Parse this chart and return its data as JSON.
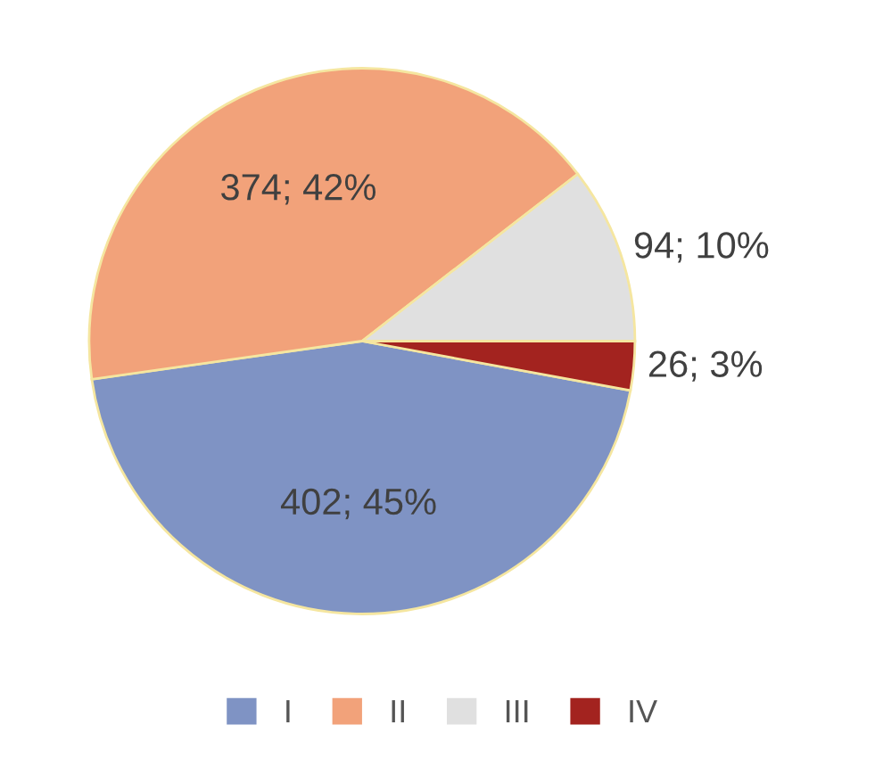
{
  "chart_data": {
    "type": "pie",
    "categories": [
      "I",
      "II",
      "III",
      "IV"
    ],
    "values": [
      402,
      374,
      94,
      26
    ],
    "value_labels": [
      "402; 45%",
      "374; 42%",
      "94; 10%",
      "26; 3%"
    ],
    "colors": [
      "#7f93c4",
      "#f2a27a",
      "#e0e0e0",
      "#a3231f"
    ],
    "legend": "bottom"
  }
}
